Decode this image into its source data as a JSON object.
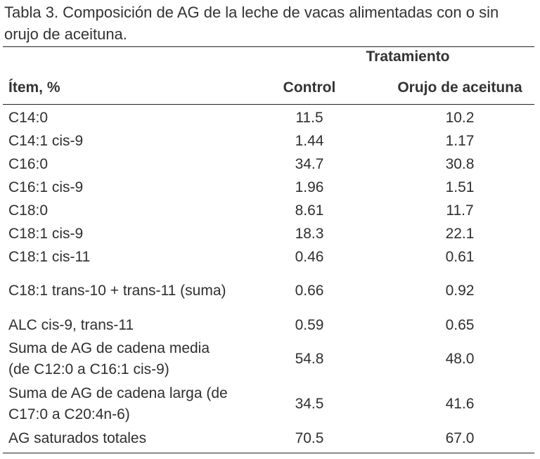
{
  "caption": "Tabla 3. Composición de AG de la leche de vacas alimentadas con o sin orujo de aceituna.",
  "table": {
    "group_header": "Tratamiento",
    "columns": [
      "Ítem, %",
      "Control",
      "Orujo de aceituna"
    ],
    "rows": [
      {
        "item": "C14:0",
        "control": "11.5",
        "orujo": "10.2"
      },
      {
        "item": "C14:1 cis-9",
        "control": "1.44",
        "orujo": "1.17"
      },
      {
        "item": "C16:0",
        "control": "34.7",
        "orujo": "30.8"
      },
      {
        "item": "C16:1 cis-9",
        "control": "1.96",
        "orujo": "1.51"
      },
      {
        "item": "C18:0",
        "control": "8.61",
        "orujo": "11.7"
      },
      {
        "item": "C18:1 cis-9",
        "control": "18.3",
        "orujo": "22.1"
      },
      {
        "item": "C18:1 cis-11",
        "control": "0.46",
        "orujo": "0.61"
      },
      {
        "item": "C18:1 trans-10 + trans-11 (suma)",
        "control": "0.66",
        "orujo": "0.92"
      },
      {
        "item": "ALC cis-9, trans-11",
        "control": "0.59",
        "orujo": "0.65"
      },
      {
        "item": "Suma de AG de cadena media (de C12:0 a C16:1 cis-9)",
        "control": "54.8",
        "orujo": "48.0"
      },
      {
        "item": "Suma de AG de cadena larga (de C17:0 a C20:4n-6)",
        "control": "34.5",
        "orujo": "41.6"
      },
      {
        "item": "AG saturados totales",
        "control": "70.5",
        "orujo": "67.0"
      }
    ]
  }
}
